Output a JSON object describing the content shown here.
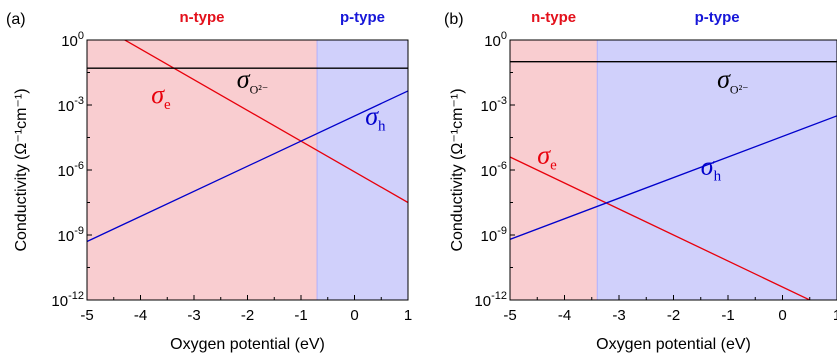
{
  "colors": {
    "n_region": "#f9cdd0",
    "p_region": "#d0d0fb",
    "n_label": "#e3101b",
    "p_label": "#1616d8",
    "sigma_e": "#e8000b",
    "sigma_h": "#0000cc",
    "sigma_o": "#000000",
    "boundary": "#a9a9ff"
  },
  "chart_data": [
    {
      "type": "line",
      "panel_label": "(a)",
      "xlabel": "Oxygen potential (eV)",
      "ylabel": "Conductivity (Ω⁻¹cm⁻¹)",
      "xlim": [
        -5,
        1
      ],
      "ylim_log10": [
        -12,
        0
      ],
      "y_scale": "log",
      "x_ticks": [
        -5,
        -4,
        -3,
        -2,
        -1,
        0,
        1
      ],
      "x_tick_labels": [
        "-5",
        "-4",
        "-3",
        "-2",
        "-1",
        "0",
        "1"
      ],
      "y_tick_exponents": [
        0,
        -3,
        -6,
        -9,
        -12
      ],
      "y_tick_labels": [
        "10",
        "10",
        "10",
        "10",
        "10"
      ],
      "y_tick_superscripts": [
        "0",
        "-3",
        "-6",
        "-9",
        "-12"
      ],
      "regions": [
        {
          "label": "n-type",
          "x_range": [
            -5,
            -0.7
          ]
        },
        {
          "label": "p-type",
          "x_range": [
            -0.7,
            1
          ]
        }
      ],
      "series": [
        {
          "key": "sigma_e",
          "label": "σ",
          "label_subscript": "e",
          "x": [
            -5,
            1
          ],
          "log10_y": [
            1.0,
            -7.5
          ],
          "label_at": [
            -3.8,
            -2.9
          ]
        },
        {
          "key": "sigma_h",
          "label": "σ",
          "label_subscript": "h",
          "x": [
            -5,
            1
          ],
          "log10_y": [
            -9.3,
            -2.35
          ],
          "label_at": [
            0.2,
            -3.9
          ]
        },
        {
          "key": "sigma_o",
          "label": "σ",
          "label_subscript": "O²⁻",
          "x": [
            -5,
            1
          ],
          "log10_y": [
            -1.3,
            -1.3
          ],
          "label_at": [
            -2.2,
            -2.2
          ]
        }
      ]
    },
    {
      "type": "line",
      "panel_label": "(b)",
      "xlabel": "Oxygen potential (eV)",
      "ylabel": "Conductivity (Ω⁻¹cm⁻¹)",
      "xlim": [
        -5,
        1
      ],
      "ylim_log10": [
        -12,
        0
      ],
      "y_scale": "log",
      "x_ticks": [
        -5,
        -4,
        -3,
        -2,
        -1,
        0,
        1
      ],
      "x_tick_labels": [
        "-5",
        "-4",
        "-3",
        "-2",
        "-1",
        "0",
        "1"
      ],
      "y_tick_exponents": [
        0,
        -3,
        -6,
        -9,
        -12
      ],
      "y_tick_labels": [
        "10",
        "10",
        "10",
        "10",
        "10"
      ],
      "y_tick_superscripts": [
        "0",
        "-3",
        "-6",
        "-9",
        "-12"
      ],
      "regions": [
        {
          "label": "n-type",
          "x_range": [
            -5,
            -3.4
          ]
        },
        {
          "label": "p-type",
          "x_range": [
            -3.4,
            1
          ]
        }
      ],
      "series": [
        {
          "key": "sigma_e",
          "label": "σ",
          "label_subscript": "e",
          "x": [
            -5,
            1
          ],
          "log10_y": [
            -5.4,
            -12.6
          ],
          "label_at": [
            -4.5,
            -5.7
          ]
        },
        {
          "key": "sigma_h",
          "label": "σ",
          "label_subscript": "h",
          "x": [
            -5,
            1
          ],
          "log10_y": [
            -9.2,
            -3.5
          ],
          "label_at": [
            -1.5,
            -6.2
          ]
        },
        {
          "key": "sigma_o",
          "label": "σ",
          "label_subscript": "O²⁻",
          "x": [
            -5,
            1
          ],
          "log10_y": [
            -1.0,
            -1.0
          ],
          "label_at": [
            -1.2,
            -2.2
          ]
        }
      ]
    }
  ]
}
